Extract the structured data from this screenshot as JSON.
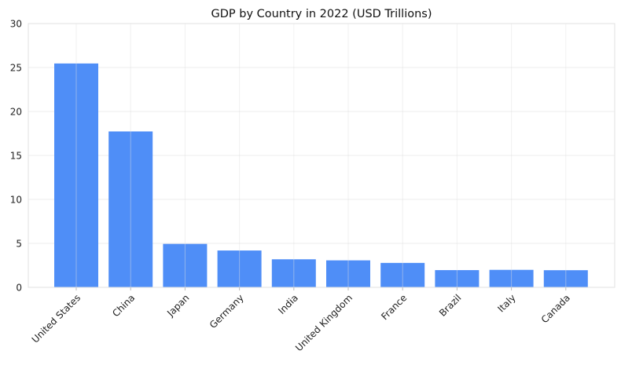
{
  "chart_data": {
    "type": "bar",
    "title": "GDP by Country in 2022 (USD Trillions)",
    "xlabel": "",
    "ylabel": "",
    "categories": [
      "United States",
      "China",
      "Japan",
      "Germany",
      "India",
      "United Kingdom",
      "France",
      "Brazil",
      "Italy",
      "Canada"
    ],
    "values": [
      25.46,
      17.73,
      4.94,
      4.19,
      3.19,
      3.07,
      2.78,
      1.96,
      1.99,
      1.95
    ],
    "ylim": [
      0,
      30
    ],
    "yticks": [
      0,
      5,
      10,
      15,
      20,
      25,
      30
    ],
    "grid": true,
    "bar_color": "#4f8ef7"
  }
}
